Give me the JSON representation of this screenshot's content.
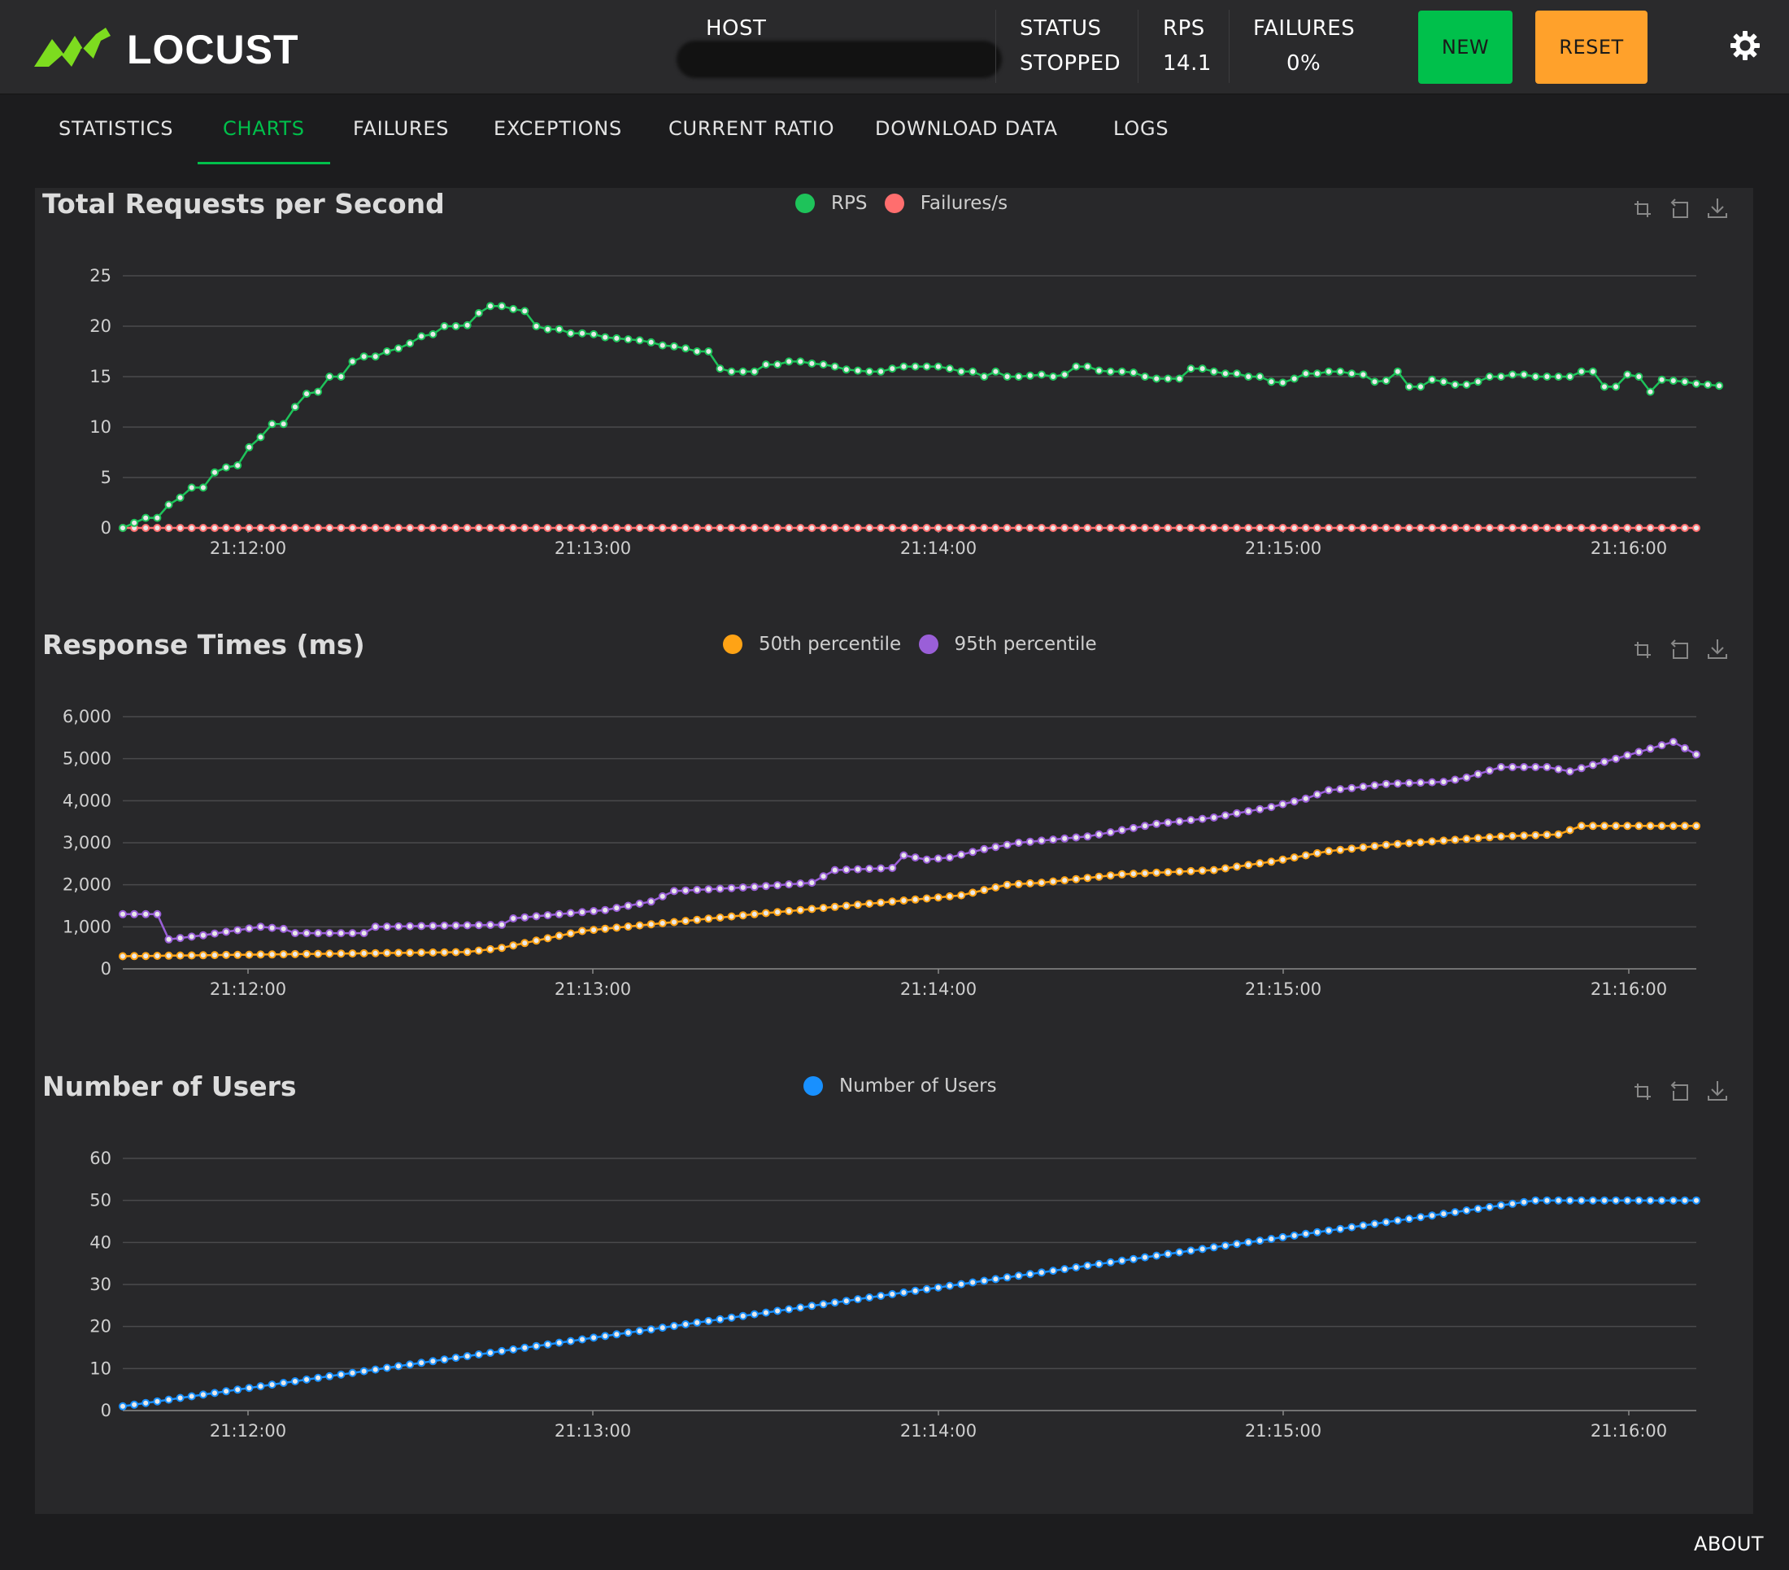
{
  "app": {
    "brand": "LOCUST"
  },
  "header": {
    "host_label": "HOST",
    "status_label": "STATUS",
    "status_value": "STOPPED",
    "rps_label": "RPS",
    "rps_value": "14.1",
    "failures_label": "FAILURES",
    "failures_value": "0%",
    "new_button": "NEW",
    "reset_button": "RESET"
  },
  "colors": {
    "accent": "#00c04b",
    "reset": "#ffa12b",
    "rps": "#1ec35a",
    "failures": "#ff6e6e",
    "p50": "#ffa315",
    "p95": "#9a5fd8",
    "users": "#1890ff"
  },
  "tabs": [
    {
      "label": "STATISTICS",
      "active": false
    },
    {
      "label": "CHARTS",
      "active": true
    },
    {
      "label": "FAILURES",
      "active": false
    },
    {
      "label": "EXCEPTIONS",
      "active": false
    },
    {
      "label": "CURRENT RATIO",
      "active": false
    },
    {
      "label": "DOWNLOAD DATA",
      "active": false
    },
    {
      "label": "LOGS",
      "active": false
    }
  ],
  "footer": {
    "about": "ABOUT"
  },
  "chart_data": [
    {
      "type": "line",
      "title": "Total Requests per Second",
      "x_ticks": [
        "21:12:00",
        "21:13:00",
        "21:14:00",
        "21:15:00",
        "21:16:00"
      ],
      "y_ticks": [
        "0",
        "5",
        "10",
        "15",
        "20",
        "25"
      ],
      "ylim": [
        0,
        25
      ],
      "grid": true,
      "legend_position": "top-center",
      "tools": [
        "zoom-icon",
        "restore-icon",
        "download-icon"
      ],
      "series": [
        {
          "name": "RPS",
          "color": "#1ec35a",
          "values": [
            0,
            0.5,
            1,
            1,
            2.3,
            3,
            4,
            4,
            5.5,
            6,
            6.2,
            8,
            9,
            10.3,
            10.3,
            12,
            13.3,
            13.5,
            15,
            15,
            16.5,
            17,
            17,
            17.5,
            17.8,
            18.3,
            19,
            19.2,
            20,
            20,
            20.1,
            21.3,
            22,
            22,
            21.7,
            21.5,
            20,
            19.7,
            19.7,
            19.3,
            19.3,
            19.2,
            18.9,
            18.8,
            18.7,
            18.6,
            18.4,
            18.1,
            18,
            17.8,
            17.5,
            17.5,
            15.8,
            15.5,
            15.5,
            15.5,
            16.2,
            16.2,
            16.5,
            16.5,
            16.3,
            16.2,
            16,
            15.7,
            15.6,
            15.5,
            15.5,
            15.8,
            16,
            16,
            16,
            16,
            15.8,
            15.5,
            15.5,
            15,
            15.5,
            15,
            15,
            15.1,
            15.2,
            15,
            15.2,
            16,
            16,
            15.6,
            15.5,
            15.5,
            15.4,
            15,
            14.8,
            14.8,
            14.8,
            15.8,
            15.8,
            15.5,
            15.3,
            15.3,
            15,
            15,
            14.5,
            14.4,
            14.8,
            15.3,
            15.3,
            15.5,
            15.5,
            15.3,
            15.2,
            14.5,
            14.6,
            15.5,
            14,
            14,
            14.7,
            14.5,
            14.2,
            14.2,
            14.5,
            15,
            15,
            15.2,
            15.2,
            15,
            15,
            15,
            15,
            15.5,
            15.5,
            14,
            14,
            15.2,
            15,
            13.5,
            14.7,
            14.6,
            14.5,
            14.3,
            14.2,
            14.1
          ]
        },
        {
          "name": "Failures/s",
          "color": "#ff6e6e",
          "constant": 0
        }
      ]
    },
    {
      "type": "line",
      "title": "Response Times (ms)",
      "x_ticks": [
        "21:12:00",
        "21:13:00",
        "21:14:00",
        "21:15:00",
        "21:16:00"
      ],
      "y_ticks": [
        "0",
        "1,000",
        "2,000",
        "3,000",
        "4,000",
        "5,000",
        "6,000"
      ],
      "ylim": [
        0,
        6000
      ],
      "grid": true,
      "legend_position": "top-center",
      "tools": [
        "zoom-icon",
        "restore-icon",
        "download-icon"
      ],
      "series": [
        {
          "name": "50th percentile",
          "color": "#ffa315",
          "knots": [
            [
              0,
              300
            ],
            [
              30,
              400
            ],
            [
              33,
              500
            ],
            [
              40,
              900
            ],
            [
              55,
              1300
            ],
            [
              65,
              1550
            ],
            [
              73,
              1750
            ],
            [
              77,
              2000
            ],
            [
              80,
              2050
            ],
            [
              87,
              2250
            ],
            [
              95,
              2350
            ],
            [
              100,
              2550
            ],
            [
              105,
              2800
            ],
            [
              110,
              2950
            ],
            [
              115,
              3050
            ],
            [
              120,
              3150
            ],
            [
              125,
              3200
            ],
            [
              127,
              3400
            ],
            [
              137,
              3400
            ]
          ]
        },
        {
          "name": "95th percentile",
          "color": "#9a5fd8",
          "knots": [
            [
              0,
              1300
            ],
            [
              3,
              1300
            ],
            [
              4,
              700
            ],
            [
              7,
              800
            ],
            [
              12,
              1000
            ],
            [
              14,
              950
            ],
            [
              15,
              850
            ],
            [
              21,
              850
            ],
            [
              22,
              1000
            ],
            [
              33,
              1050
            ],
            [
              34,
              1200
            ],
            [
              42,
              1400
            ],
            [
              46,
              1600
            ],
            [
              48,
              1850
            ],
            [
              55,
              1950
            ],
            [
              60,
              2050
            ],
            [
              62,
              2350
            ],
            [
              67,
              2400
            ],
            [
              68,
              2700
            ],
            [
              70,
              2600
            ],
            [
              72,
              2650
            ],
            [
              75,
              2850
            ],
            [
              78,
              3000
            ],
            [
              84,
              3150
            ],
            [
              90,
              3450
            ],
            [
              95,
              3600
            ],
            [
              100,
              3850
            ],
            [
              103,
              4050
            ],
            [
              105,
              4250
            ],
            [
              107,
              4300
            ],
            [
              110,
              4400
            ],
            [
              115,
              4450
            ],
            [
              117,
              4550
            ],
            [
              120,
              4800
            ],
            [
              124,
              4800
            ],
            [
              126,
              4700
            ],
            [
              128,
              4850
            ],
            [
              130,
              5000
            ],
            [
              135,
              5400
            ],
            [
              137,
              5100
            ]
          ]
        }
      ]
    },
    {
      "type": "line",
      "title": "Number of Users",
      "x_ticks": [
        "21:12:00",
        "21:13:00",
        "21:14:00",
        "21:15:00",
        "21:16:00"
      ],
      "y_ticks": [
        "0",
        "10",
        "20",
        "30",
        "40",
        "50",
        "60"
      ],
      "ylim": [
        0,
        60
      ],
      "grid": true,
      "legend_position": "top-center",
      "tools": [
        "zoom-icon",
        "restore-icon",
        "download-icon"
      ],
      "series": [
        {
          "name": "Number of Users",
          "color": "#1890ff",
          "knots": [
            [
              0,
              1
            ],
            [
              123,
              50
            ],
            [
              137,
              50
            ]
          ]
        }
      ]
    }
  ]
}
